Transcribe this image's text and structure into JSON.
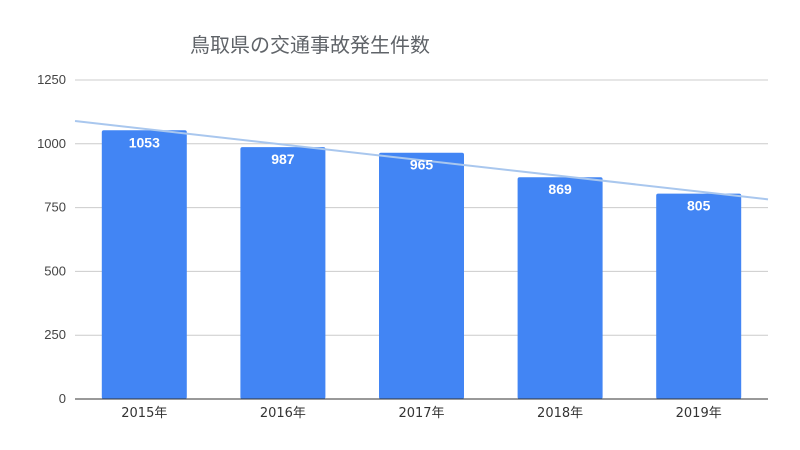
{
  "chart_data": {
    "type": "bar",
    "title": "鳥取県の交通事故発生件数",
    "categories": [
      "2015年",
      "2016年",
      "2017年",
      "2018年",
      "2019年"
    ],
    "values": [
      1053,
      987,
      965,
      869,
      805
    ],
    "data_labels": [
      "1053",
      "987",
      "965",
      "869",
      "805"
    ],
    "xlabel": "",
    "ylabel": "",
    "ylim": [
      0,
      1250
    ],
    "yticks": [
      0,
      250,
      500,
      750,
      1000,
      1250
    ],
    "ytick_labels": [
      "0",
      "250",
      "500",
      "750",
      "1000",
      "1250"
    ],
    "grid": true,
    "legend": "none",
    "trendline": {
      "type": "linear",
      "color": "#a9c7ee"
    },
    "colors": {
      "bar": "#4285f4",
      "grid": "#cccccc",
      "axis": "#333333",
      "data_label": "#ffffff",
      "title": "#5f6368"
    }
  }
}
